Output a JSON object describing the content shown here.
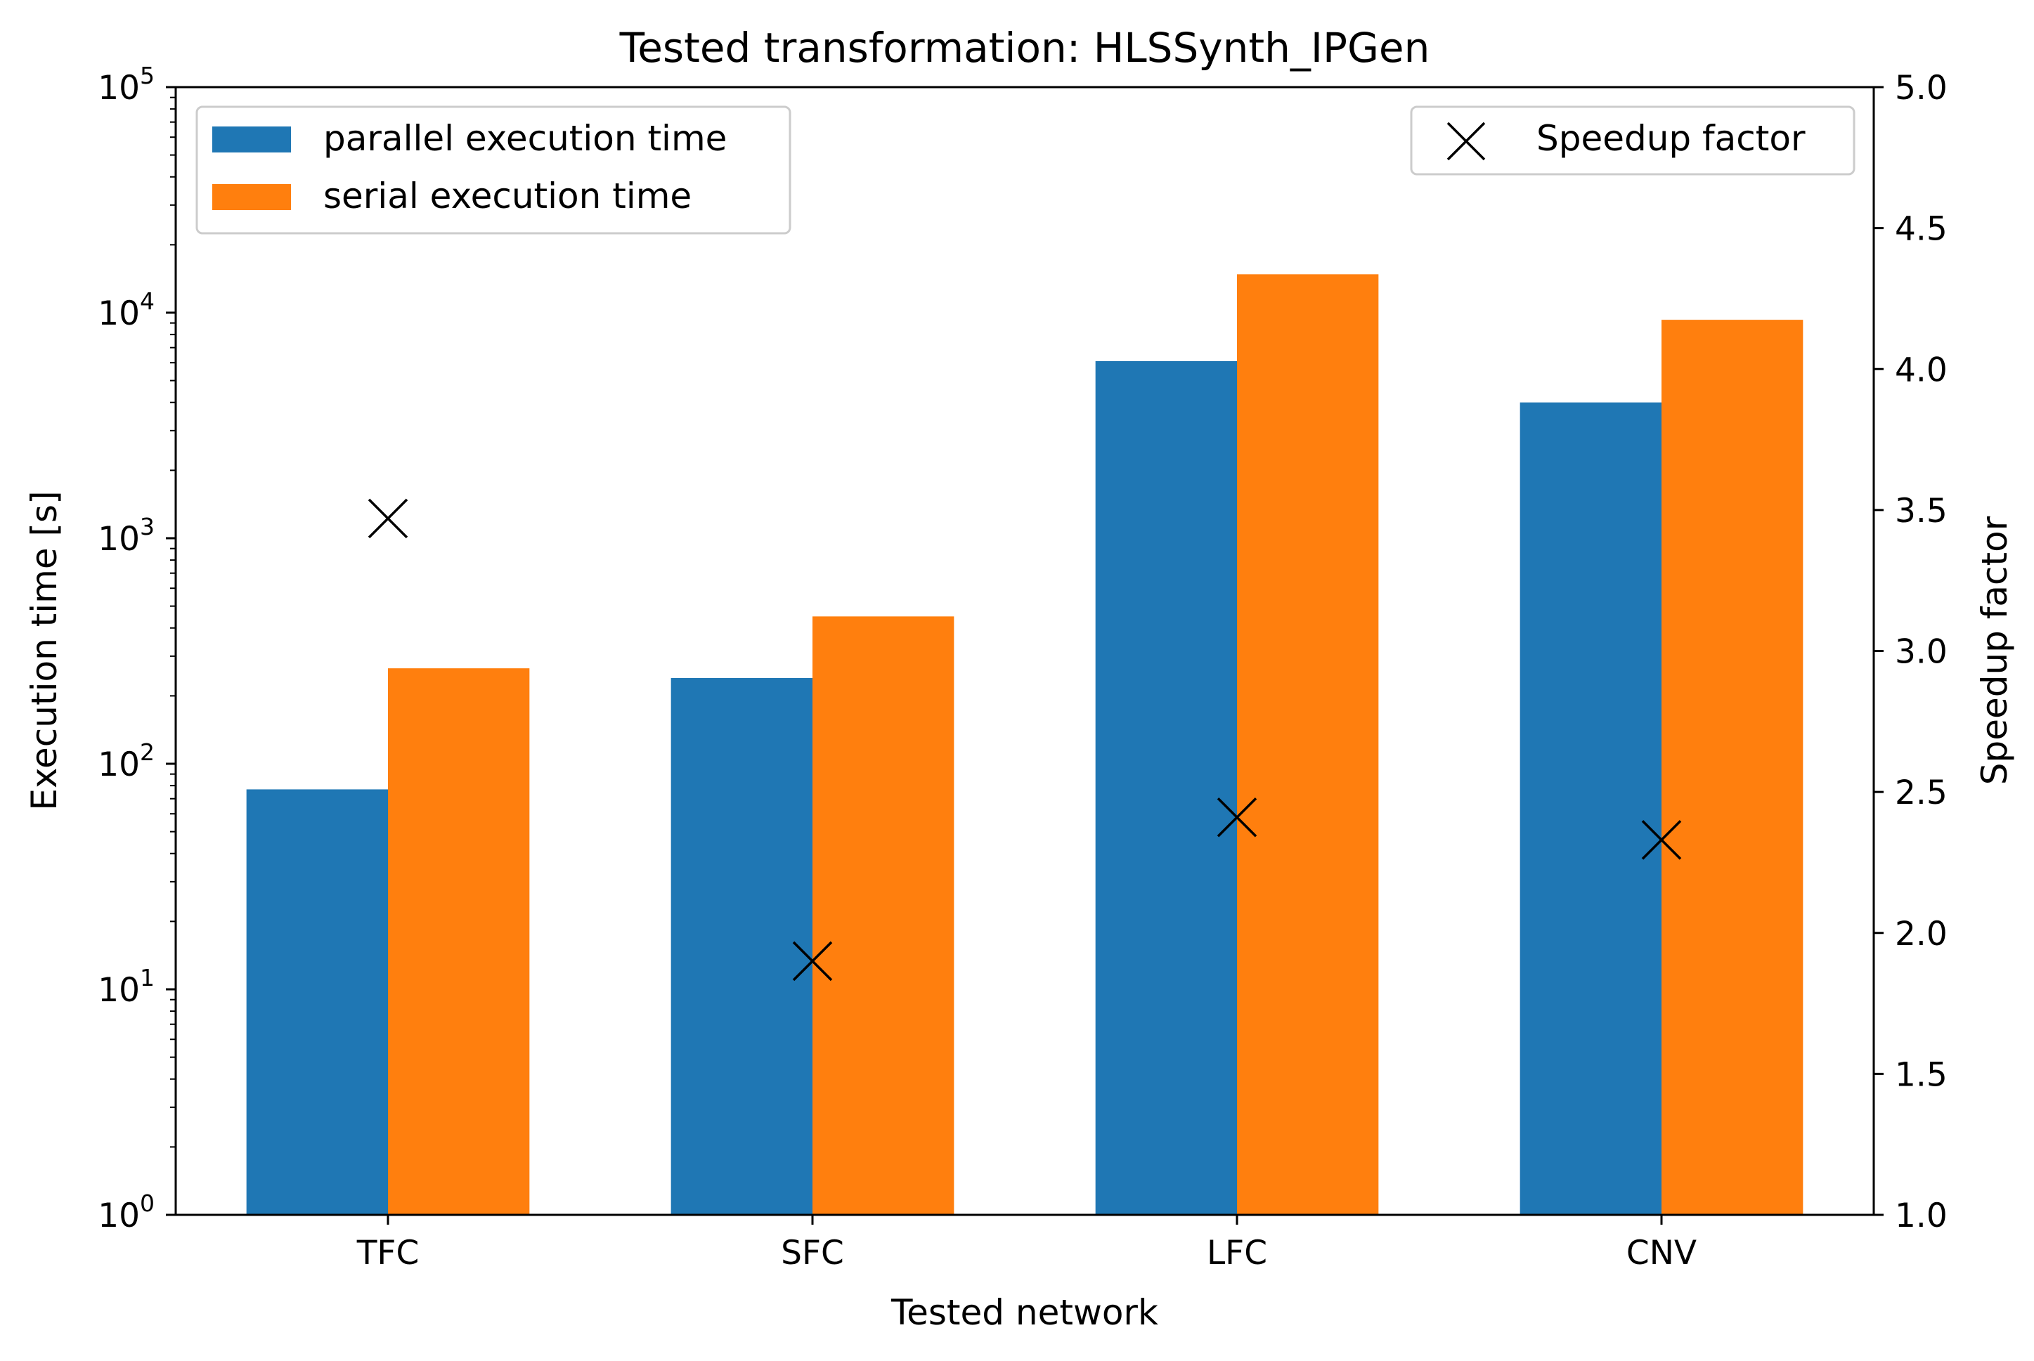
{
  "chart_data": {
    "type": "bar",
    "title": "Tested transformation: HLSSynth_IPGen",
    "xlabel": "Tested network",
    "ylabel": "Execution time [s]",
    "y2label": "Speedup factor",
    "categories": [
      "TFC",
      "SFC",
      "LFC",
      "CNV"
    ],
    "yscale": "log",
    "ylim": [
      1,
      100000
    ],
    "y_ticks": [
      {
        "base": "10",
        "exp": "0",
        "value": 1
      },
      {
        "base": "10",
        "exp": "1",
        "value": 10
      },
      {
        "base": "10",
        "exp": "2",
        "value": 100
      },
      {
        "base": "10",
        "exp": "3",
        "value": 1000
      },
      {
        "base": "10",
        "exp": "4",
        "value": 10000
      },
      {
        "base": "10",
        "exp": "5",
        "value": 100000
      }
    ],
    "y2lim": [
      1.0,
      5.0
    ],
    "y2_ticks": [
      "1.0",
      "1.5",
      "2.0",
      "2.5",
      "3.0",
      "3.5",
      "4.0",
      "4.5",
      "5.0"
    ],
    "series": [
      {
        "name": "parallel execution time",
        "color": "#1f77b4",
        "values": [
          77,
          240,
          6100,
          4000
        ]
      },
      {
        "name": "serial execution time",
        "color": "#ff7f0e",
        "values": [
          265,
          450,
          14800,
          9300
        ]
      }
    ],
    "speedup": {
      "name": "Speedup factor",
      "marker": "x",
      "color": "#000000",
      "values": [
        3.47,
        1.9,
        2.41,
        2.33
      ]
    },
    "grid": false,
    "legend_bars_position": "upper-left",
    "legend_speedup_position": "upper-right"
  }
}
